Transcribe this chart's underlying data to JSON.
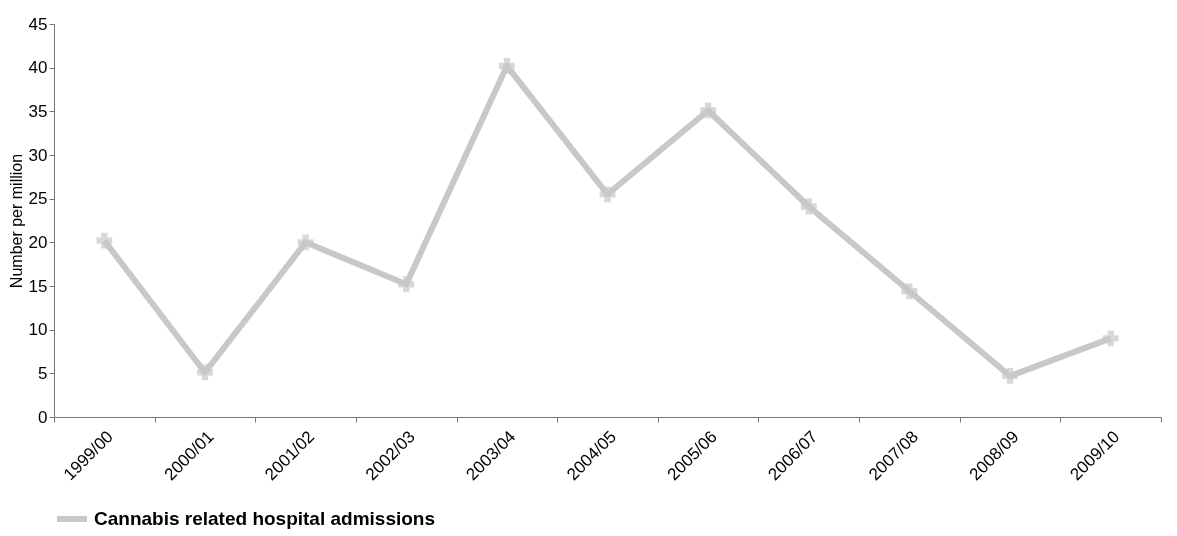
{
  "chart_data": {
    "type": "line",
    "ylabel": "Number per million",
    "categories": [
      "1999/00",
      "2000/01",
      "2001/02",
      "2002/03",
      "2003/04",
      "2004/05",
      "2005/06",
      "2006/07",
      "2007/08",
      "2008/09",
      "2009/10"
    ],
    "series": [
      {
        "name": "Cannabis related hospital admissions",
        "color": "#c8c8c8",
        "values": [
          20.2,
          5.1,
          20.0,
          15.2,
          40.2,
          25.5,
          35.1,
          24.1,
          14.4,
          4.7,
          9.0
        ]
      }
    ],
    "ylim": [
      0,
      45
    ],
    "yticks": [
      0,
      5,
      10,
      15,
      20,
      25,
      30,
      35,
      40,
      45
    ],
    "grid": false,
    "legend": "bottom",
    "marker": "cross",
    "line_style": "solid"
  }
}
